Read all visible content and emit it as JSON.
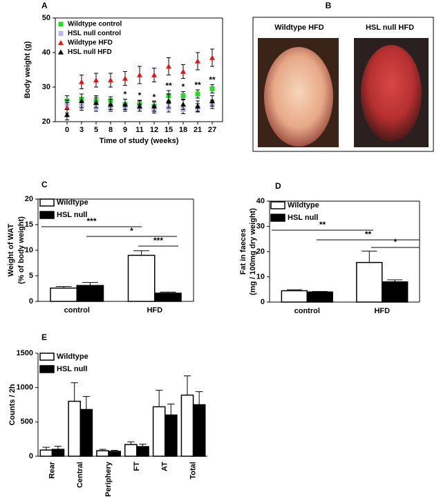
{
  "chart_data": [
    {
      "panel": "A",
      "type": "scatter",
      "categories": [
        "0",
        "3",
        "5",
        "8",
        "9",
        "11",
        "12",
        "15",
        "18",
        "21",
        "27"
      ],
      "xlabel": "Time of study (weeks)",
      "ylabel": "Body weight (g)",
      "ylim": [
        20,
        50
      ],
      "yticks": [
        20,
        30,
        40,
        50
      ],
      "legend": "upper left",
      "series": [
        {
          "name": "Wildtype control",
          "color": "#22dd22",
          "marker": "square",
          "values": [
            26,
            26.5,
            26,
            26,
            25,
            25,
            24.5,
            27.5,
            27.5,
            28,
            29.5
          ],
          "errors": [
            1.5,
            1.5,
            1.5,
            1.2,
            1.5,
            1.2,
            1.2,
            1.5,
            1.2,
            1.2,
            1.2
          ]
        },
        {
          "name": "HSL null control",
          "color": "#b8b8ee",
          "marker": "square",
          "values": [
            25,
            24.5,
            24,
            24,
            24,
            24,
            23.5,
            24,
            23.5,
            24,
            25
          ],
          "errors": [
            1.2,
            1.2,
            1,
            1,
            1,
            1,
            1,
            1.2,
            1.2,
            1.2,
            1.2
          ]
        },
        {
          "name": "Wildtype HFD",
          "color": "#ee1111",
          "marker": "triangle",
          "values": [
            24,
            31.5,
            32,
            32,
            32.5,
            33.5,
            33.5,
            36,
            34.5,
            37.5,
            38.5
          ],
          "errors": [
            1.5,
            2,
            2,
            2,
            2,
            2.5,
            2,
            2.5,
            2,
            2.5,
            2.5
          ]
        },
        {
          "name": "HSL null HFD",
          "color": "#000000",
          "marker": "triangle",
          "values": [
            22,
            26,
            25.5,
            25,
            25,
            24.5,
            24.5,
            26,
            25,
            24.5,
            26
          ],
          "errors": [
            1.5,
            2,
            1.5,
            1.5,
            1.5,
            1.5,
            1.5,
            2,
            1.5,
            1.5,
            1.5
          ]
        }
      ],
      "significance": [
        null,
        null,
        null,
        null,
        "*",
        "*",
        "*",
        "**",
        "*",
        "**",
        "**"
      ]
    },
    {
      "panel": "C",
      "type": "bar",
      "categories": [
        "control",
        "HFD"
      ],
      "ylabel": [
        "Weight of WAT",
        "(% of body weight)"
      ],
      "ylim": [
        0,
        20
      ],
      "yticks": [
        0,
        5,
        10,
        15,
        20
      ],
      "legend": "upper left",
      "series": [
        {
          "name": "Wildtype",
          "color": "#ffffff",
          "values": [
            2.6,
            9.0
          ],
          "errors": [
            0.3,
            0.9
          ]
        },
        {
          "name": "HSL null",
          "color": "#000000",
          "values": [
            3.1,
            1.6
          ],
          "errors": [
            0.6,
            0.2
          ]
        }
      ],
      "significance": [
        "***",
        "*",
        "***"
      ]
    },
    {
      "panel": "D",
      "type": "bar",
      "categories": [
        "control",
        "HFD"
      ],
      "ylabel": [
        "Fat in faeces",
        "(mg / 100mg dry weight)"
      ],
      "ylim": [
        0,
        40
      ],
      "yticks": [
        0,
        10,
        20,
        30,
        40
      ],
      "legend": "upper left",
      "series": [
        {
          "name": "Wildtype",
          "color": "#ffffff",
          "values": [
            4.5,
            15.7
          ],
          "errors": [
            0.4,
            4.5
          ]
        },
        {
          "name": "HSL null",
          "color": "#000000",
          "values": [
            4.0,
            8.0
          ],
          "errors": [
            0.2,
            0.8
          ]
        }
      ],
      "significance": [
        "**",
        "**",
        "*"
      ]
    },
    {
      "panel": "E",
      "type": "bar",
      "categories": [
        "Rear",
        "Central",
        "Periphery",
        "FT",
        "AT",
        "Total"
      ],
      "ylabel": "Counts / 2h",
      "ylim": [
        0,
        1500
      ],
      "yticks": [
        0,
        500,
        1000,
        1500
      ],
      "legend": "upper left",
      "series": [
        {
          "name": "Wildtype",
          "color": "#ffffff",
          "values": [
            90,
            800,
            80,
            170,
            720,
            890
          ],
          "errors": [
            40,
            270,
            20,
            40,
            240,
            280
          ]
        },
        {
          "name": "HSL null",
          "color": "#000000",
          "values": [
            100,
            680,
            70,
            140,
            600,
            750
          ],
          "errors": [
            45,
            190,
            15,
            35,
            160,
            190
          ]
        }
      ]
    }
  ],
  "panel_b": {
    "panel": "B",
    "captions": [
      "Wildtype HFD",
      "HSL null HFD"
    ]
  }
}
